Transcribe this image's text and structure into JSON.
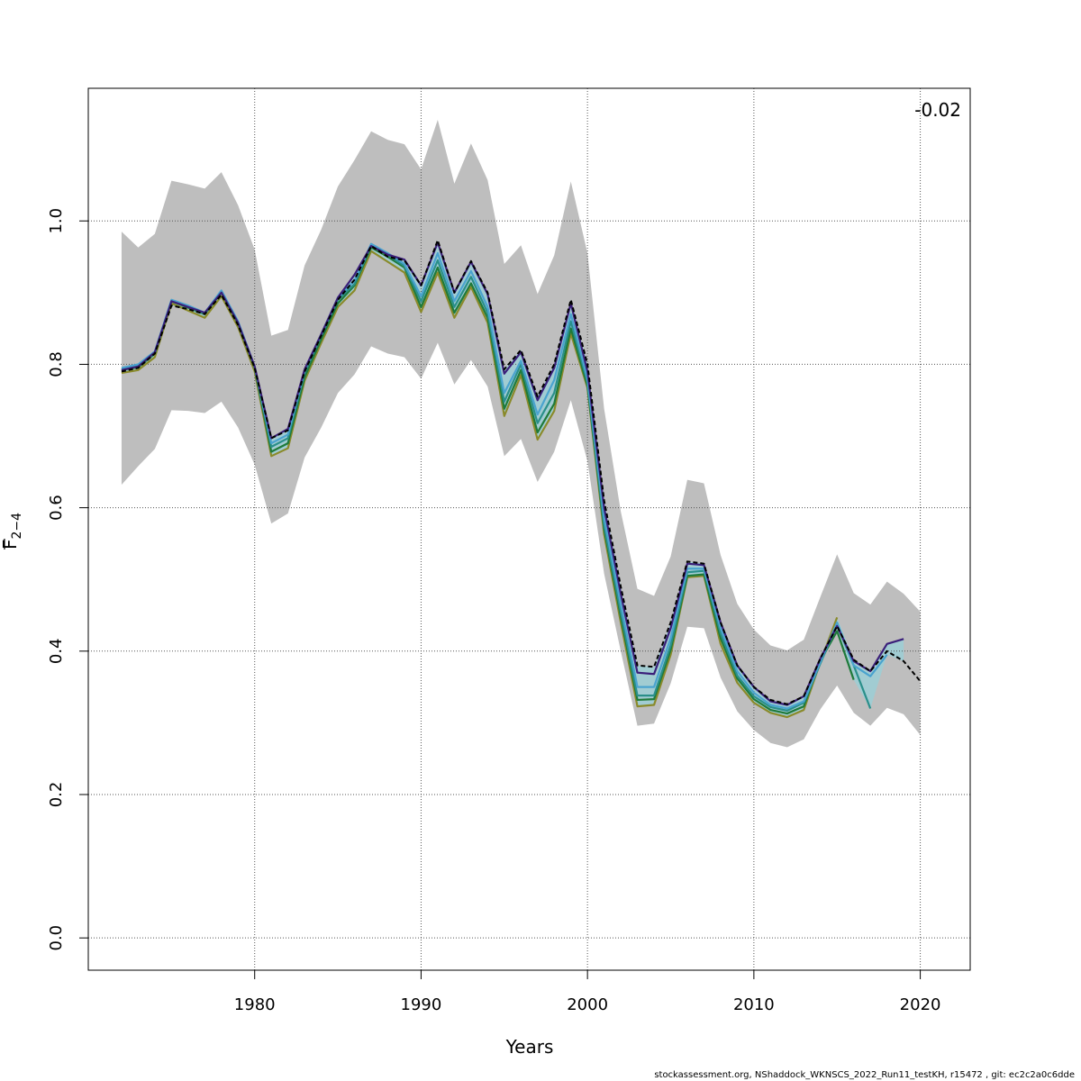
{
  "chart_data": {
    "type": "line",
    "xlabel": "Years",
    "ylabel": "F",
    "ylabel_sub": "2−4",
    "annotation": "-0.02",
    "footer": "stockassessment.org, NShaddock_WKNSCS_2022_Run11_testKH, r15472 , git: ec2c2a0c6dde",
    "xlim": [
      1970,
      2023
    ],
    "ylim": [
      -0.045,
      1.185
    ],
    "x_ticks": [
      1980,
      1990,
      2000,
      2010,
      2020
    ],
    "y_ticks": [
      0.0,
      0.2,
      0.4,
      0.6,
      0.8,
      1.0
    ],
    "x_tick_labels": [
      "1980",
      "1990",
      "2000",
      "2010",
      "2020"
    ],
    "y_tick_labels": [
      "0.0",
      "0.2",
      "0.4",
      "0.6",
      "0.8",
      "1.0"
    ],
    "grid": true,
    "colors": {
      "band": "#bebebe",
      "inner_band": "#9ccfd6",
      "base": "#000000",
      "peel1": "#3b1f7a",
      "peel2": "#4aa3cf",
      "peel3": "#2a8f8a",
      "peel4": "#1f7a3a",
      "peel5": "#8a8a2a"
    },
    "band": {
      "x": [
        1972,
        1973,
        1974,
        1975,
        1976,
        1977,
        1978,
        1979,
        1980,
        1981,
        1982,
        1983,
        1984,
        1985,
        1986,
        1987,
        1988,
        1989,
        1990,
        1991,
        1992,
        1993,
        1994,
        1995,
        1996,
        1997,
        1998,
        1999,
        2000,
        2001,
        2002,
        2003,
        2004,
        2005,
        2006,
        2007,
        2008,
        2009,
        2010,
        2011,
        2012,
        2013,
        2014,
        2015,
        2016,
        2017,
        2018,
        2019,
        2020
      ],
      "upper": [
        0.985,
        0.963,
        0.982,
        1.056,
        1.051,
        1.045,
        1.068,
        1.022,
        0.96,
        0.84,
        0.848,
        0.938,
        0.988,
        1.048,
        1.085,
        1.125,
        1.113,
        1.107,
        1.072,
        1.141,
        1.052,
        1.108,
        1.057,
        0.94,
        0.966,
        0.898,
        0.952,
        1.055,
        0.955,
        0.738,
        0.595,
        0.487,
        0.477,
        0.532,
        0.639,
        0.634,
        0.534,
        0.466,
        0.43,
        0.408,
        0.401,
        0.416,
        0.476,
        0.535,
        0.481,
        0.465,
        0.497,
        0.48,
        0.455
      ],
      "lower": [
        0.632,
        0.658,
        0.682,
        0.736,
        0.735,
        0.732,
        0.748,
        0.712,
        0.66,
        0.578,
        0.592,
        0.67,
        0.712,
        0.76,
        0.786,
        0.825,
        0.815,
        0.81,
        0.78,
        0.83,
        0.772,
        0.806,
        0.769,
        0.672,
        0.696,
        0.636,
        0.678,
        0.75,
        0.665,
        0.508,
        0.4,
        0.296,
        0.299,
        0.355,
        0.434,
        0.432,
        0.363,
        0.316,
        0.29,
        0.272,
        0.266,
        0.277,
        0.319,
        0.352,
        0.314,
        0.296,
        0.321,
        0.312,
        0.283
      ]
    },
    "series": [
      {
        "key": "base",
        "x": [
          1972,
          1973,
          1974,
          1975,
          1976,
          1977,
          1978,
          1979,
          1980,
          1981,
          1982,
          1983,
          1984,
          1985,
          1986,
          1987,
          1988,
          1989,
          1990,
          1991,
          1992,
          1993,
          1994,
          1995,
          1996,
          1997,
          1998,
          1999,
          2000,
          2001,
          2002,
          2003,
          2004,
          2005,
          2006,
          2007,
          2008,
          2009,
          2010,
          2011,
          2012,
          2013,
          2014,
          2015,
          2016,
          2017,
          2018,
          2019,
          2020
        ],
        "y": [
          0.79,
          0.795,
          0.815,
          0.882,
          0.877,
          0.87,
          0.897,
          0.855,
          0.795,
          0.697,
          0.708,
          0.79,
          0.84,
          0.89,
          0.918,
          0.965,
          0.95,
          0.945,
          0.91,
          0.973,
          0.9,
          0.944,
          0.9,
          0.793,
          0.82,
          0.755,
          0.8,
          0.89,
          0.8,
          0.61,
          0.49,
          0.38,
          0.378,
          0.44,
          0.525,
          0.522,
          0.44,
          0.38,
          0.35,
          0.332,
          0.326,
          0.337,
          0.39,
          0.435,
          0.388,
          0.372,
          0.4,
          0.386,
          0.358
        ],
        "dashed": true
      },
      {
        "key": "peel1",
        "x": [
          1972,
          1973,
          1974,
          1975,
          1976,
          1977,
          1978,
          1979,
          1980,
          1981,
          1982,
          1983,
          1984,
          1985,
          1986,
          1987,
          1988,
          1989,
          1990,
          1991,
          1992,
          1993,
          1994,
          1995,
          1996,
          1997,
          1998,
          1999,
          2000,
          2001,
          2002,
          2003,
          2004,
          2005,
          2006,
          2007,
          2008,
          2009,
          2010,
          2011,
          2012,
          2013,
          2014,
          2015,
          2016,
          2017,
          2018,
          2019
        ],
        "y": [
          0.792,
          0.797,
          0.817,
          0.888,
          0.88,
          0.872,
          0.9,
          0.858,
          0.797,
          0.697,
          0.71,
          0.793,
          0.842,
          0.893,
          0.925,
          0.965,
          0.953,
          0.946,
          0.91,
          0.97,
          0.9,
          0.943,
          0.898,
          0.787,
          0.817,
          0.75,
          0.795,
          0.885,
          0.79,
          0.6,
          0.48,
          0.37,
          0.368,
          0.432,
          0.522,
          0.52,
          0.44,
          0.38,
          0.35,
          0.33,
          0.325,
          0.337,
          0.39,
          0.435,
          0.386,
          0.372,
          0.41,
          0.417
        ]
      },
      {
        "key": "peel2",
        "x": [
          1972,
          1973,
          1974,
          1975,
          1976,
          1977,
          1978,
          1979,
          1980,
          1981,
          1982,
          1983,
          1984,
          1985,
          1986,
          1987,
          1988,
          1989,
          1990,
          1991,
          1992,
          1993,
          1994,
          1995,
          1996,
          1997,
          1998,
          1999,
          2000,
          2001,
          2002,
          2003,
          2004,
          2005,
          2006,
          2007,
          2008,
          2009,
          2010,
          2011,
          2012,
          2013,
          2014,
          2015,
          2016,
          2017,
          2018
        ],
        "y": [
          0.795,
          0.8,
          0.818,
          0.89,
          0.882,
          0.872,
          0.903,
          0.86,
          0.797,
          0.69,
          0.702,
          0.792,
          0.842,
          0.893,
          0.917,
          0.968,
          0.955,
          0.94,
          0.895,
          0.955,
          0.888,
          0.93,
          0.88,
          0.76,
          0.805,
          0.73,
          0.778,
          0.87,
          0.78,
          0.585,
          0.465,
          0.35,
          0.35,
          0.418,
          0.515,
          0.515,
          0.432,
          0.372,
          0.342,
          0.325,
          0.32,
          0.33,
          0.385,
          0.44,
          0.38,
          0.365,
          0.395
        ]
      },
      {
        "key": "peel3",
        "x": [
          1972,
          1973,
          1974,
          1975,
          1976,
          1977,
          1978,
          1979,
          1980,
          1981,
          1982,
          1983,
          1984,
          1985,
          1986,
          1987,
          1988,
          1989,
          1990,
          1991,
          1992,
          1993,
          1994,
          1995,
          1996,
          1997,
          1998,
          1999,
          2000,
          2001,
          2002,
          2003,
          2004,
          2005,
          2006,
          2007,
          2008,
          2009,
          2010,
          2011,
          2012,
          2013,
          2014,
          2015,
          2016,
          2017
        ],
        "y": [
          0.793,
          0.798,
          0.816,
          0.889,
          0.88,
          0.871,
          0.901,
          0.858,
          0.796,
          0.685,
          0.697,
          0.788,
          0.84,
          0.89,
          0.912,
          0.966,
          0.953,
          0.937,
          0.888,
          0.945,
          0.88,
          0.922,
          0.872,
          0.748,
          0.8,
          0.718,
          0.76,
          0.86,
          0.775,
          0.575,
          0.455,
          0.338,
          0.338,
          0.408,
          0.51,
          0.512,
          0.425,
          0.366,
          0.337,
          0.322,
          0.317,
          0.328,
          0.383,
          0.437,
          0.38,
          0.32
        ]
      },
      {
        "key": "peel4",
        "x": [
          1972,
          1973,
          1974,
          1975,
          1976,
          1977,
          1978,
          1979,
          1980,
          1981,
          1982,
          1983,
          1984,
          1985,
          1986,
          1987,
          1988,
          1989,
          1990,
          1991,
          1992,
          1993,
          1994,
          1995,
          1996,
          1997,
          1998,
          1999,
          2000,
          2001,
          2002,
          2003,
          2004,
          2005,
          2006,
          2007,
          2008,
          2009,
          2010,
          2011,
          2012,
          2013,
          2014,
          2015,
          2016
        ],
        "y": [
          0.792,
          0.796,
          0.815,
          0.888,
          0.879,
          0.87,
          0.9,
          0.857,
          0.795,
          0.678,
          0.69,
          0.782,
          0.835,
          0.885,
          0.91,
          0.963,
          0.95,
          0.935,
          0.88,
          0.935,
          0.872,
          0.913,
          0.865,
          0.738,
          0.792,
          0.705,
          0.745,
          0.85,
          0.77,
          0.57,
          0.448,
          0.332,
          0.333,
          0.402,
          0.505,
          0.507,
          0.418,
          0.362,
          0.333,
          0.318,
          0.313,
          0.323,
          0.387,
          0.428,
          0.36
        ]
      },
      {
        "key": "peel5",
        "x": [
          1972,
          1973,
          1974,
          1975,
          1976,
          1977,
          1978,
          1979,
          1980,
          1981,
          1982,
          1983,
          1984,
          1985,
          1986,
          1987,
          1988,
          1989,
          1990,
          1991,
          1992,
          1993,
          1994,
          1995,
          1996,
          1997,
          1998,
          1999,
          2000,
          2001,
          2002,
          2003,
          2004,
          2005,
          2006,
          2007,
          2008,
          2009,
          2010,
          2011,
          2012,
          2013,
          2014,
          2015
        ],
        "y": [
          0.788,
          0.792,
          0.81,
          0.885,
          0.875,
          0.865,
          0.895,
          0.852,
          0.79,
          0.672,
          0.683,
          0.777,
          0.83,
          0.88,
          0.903,
          0.958,
          0.943,
          0.928,
          0.873,
          0.928,
          0.865,
          0.908,
          0.858,
          0.728,
          0.785,
          0.695,
          0.735,
          0.843,
          0.767,
          0.563,
          0.44,
          0.323,
          0.325,
          0.395,
          0.503,
          0.505,
          0.41,
          0.356,
          0.328,
          0.314,
          0.308,
          0.318,
          0.385,
          0.447
        ]
      }
    ]
  }
}
